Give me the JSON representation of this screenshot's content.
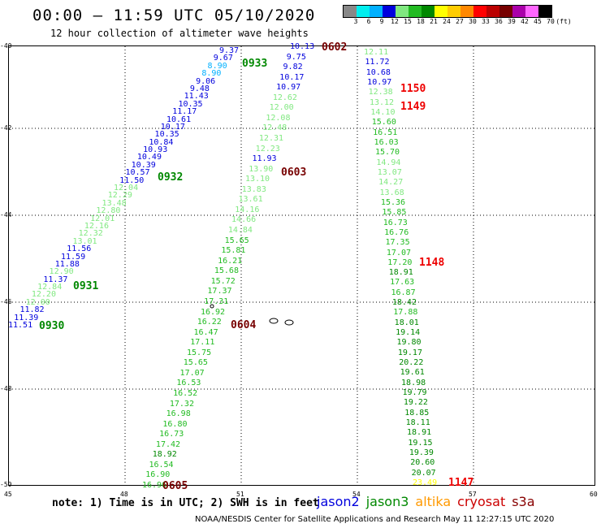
{
  "header": {
    "title": "00:00 – 11:59 UTC 05/10/2020",
    "subtitle": "12 hour collection of altimeter wave heights"
  },
  "scale": {
    "colors": [
      "#888888",
      "#00eeee",
      "#00b0ff",
      "#0000dd",
      "#80e880",
      "#22bb22",
      "#008800",
      "#ffff00",
      "#ffcc00",
      "#ff8800",
      "#ff0000",
      "#bb0000",
      "#770000",
      "#aa00aa",
      "#ff66ff",
      "#000000"
    ],
    "labels": [
      "3",
      "6",
      "9",
      "12",
      "15",
      "18",
      "21",
      "24",
      "27",
      "30",
      "33",
      "36",
      "39",
      "42",
      "45",
      "70",
      "(ft)"
    ]
  },
  "axes": {
    "lat_labels": [
      "-40",
      "-42",
      "-44",
      "-46",
      "-48",
      "-50"
    ],
    "lon_labels": [
      "45",
      "48",
      "51",
      "54",
      "57",
      "60"
    ]
  },
  "tracks": [
    {
      "time": "0930",
      "time_color": "#008800",
      "values": [
        "11.51",
        "11.39",
        "11.82",
        "12.00",
        "12.20",
        "12.84",
        "11.37",
        "12.90",
        "11.88",
        "11.59",
        "11.56",
        "13.01",
        "12.32",
        "12.16",
        "12.01",
        "12.80",
        "13.48",
        "12.29",
        "12.04",
        "11.50",
        "10.57",
        "10.39",
        "10.49",
        "10.93",
        "10.84",
        "10.35",
        "10.17",
        "10.61",
        "11.17",
        "10.35",
        "11.43",
        "9.48",
        "9.06",
        "8.90",
        "8.90",
        "9.67",
        "9.37"
      ]
    },
    {
      "time": "0931",
      "time_color": "#008800"
    },
    {
      "time": "0932",
      "time_color": "#008800"
    },
    {
      "time": "0933",
      "time_color": "#008800"
    },
    {
      "time": "0602",
      "time_color": "#770000",
      "values": [
        "10.13",
        "9.75",
        "9.82",
        "10.17",
        "10.97",
        "12.62",
        "12.00",
        "12.08",
        "12.48",
        "12.31",
        "12.23",
        "11.93",
        "13.90",
        "13.10",
        "13.83",
        "13.61",
        "14.16",
        "14.66",
        "14.84",
        "15.65",
        "15.81",
        "16.21",
        "15.68",
        "15.72",
        "17.37",
        "17.31",
        "16.92",
        "16.22",
        "16.47",
        "17.11",
        "15.75",
        "15.65",
        "17.07",
        "16.53",
        "16.52",
        "17.32",
        "16.98",
        "16.80",
        "16.73",
        "17.42",
        "18.92",
        "16.54",
        "16.90",
        "16.96"
      ]
    },
    {
      "time": "0603",
      "time_color": "#770000"
    },
    {
      "time": "0604",
      "time_color": "#770000"
    },
    {
      "time": "0605",
      "time_color": "#770000"
    },
    {
      "time": "1150",
      "time_color": "#ee0000",
      "values": [
        "12.11",
        "11.72",
        "10.68",
        "10.97",
        "12.38",
        "13.12",
        "14.10",
        "15.60",
        "16.51",
        "16.03",
        "15.70",
        "14.94",
        "13.07",
        "14.27",
        "13.68",
        "15.36",
        "15.85",
        "16.73",
        "16.76",
        "17.35",
        "17.07",
        "17.20",
        "18.91",
        "17.63",
        "16.87",
        "18.42",
        "17.88",
        "18.01",
        "19.14",
        "19.80",
        "19.17",
        "20.22",
        "19.61",
        "18.98",
        "19.79",
        "19.22",
        "18.85",
        "18.11",
        "18.91",
        "19.15",
        "19.39",
        "20.60",
        "20.07",
        "23.49"
      ]
    },
    {
      "time": "1149",
      "time_color": "#ee0000"
    },
    {
      "time": "1148",
      "time_color": "#ee0000"
    },
    {
      "time": "1147",
      "time_color": "#ee0000"
    }
  ],
  "footer": {
    "note": "note:  1) Time is in UTC;  2) SWH is in feet",
    "credit": "NOAA/NESDIS Center for Satellite Applications and Research    May 11 12:27:15 UTC 2020",
    "legend": [
      {
        "label": "jason2",
        "color": "#0000dd"
      },
      {
        "label": "jason3",
        "color": "#008800"
      },
      {
        "label": "altika",
        "color": "#ff9900"
      },
      {
        "label": "cryosat",
        "color": "#cc0000"
      },
      {
        "label": "s3a",
        "color": "#880000"
      }
    ]
  }
}
